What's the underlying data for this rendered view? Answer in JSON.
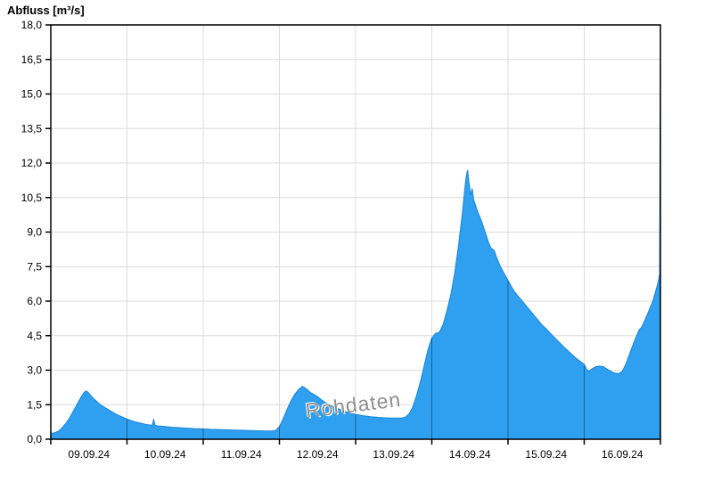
{
  "title": "Abfluss [m³/s]",
  "watermark": "Rohdaten",
  "chart_data": {
    "type": "area",
    "title": "Abfluss [m³/s]",
    "ylabel": "Abfluss [m³/s]",
    "xlabel": "",
    "unit": "m³/s",
    "ylim": [
      0,
      18
    ],
    "xlim_days": [
      0,
      8
    ],
    "grid": true,
    "y_tick_values": [
      0,
      1.5,
      3,
      4.5,
      6,
      7.5,
      9,
      10.5,
      12,
      13.5,
      15,
      16.5,
      18
    ],
    "y_tick_labels": [
      "0,0",
      "1,5",
      "3,0",
      "4,5",
      "6,0",
      "7,5",
      "9,0",
      "10,5",
      "12,0",
      "13,5",
      "15,0",
      "16,5",
      "18,0"
    ],
    "x_tick_labels": [
      "09.09.24",
      "10.09.24",
      "11.09.24",
      "12.09.24",
      "13.09.24",
      "14.09.24",
      "15.09.24",
      "16.09.24"
    ],
    "fill_color": "#2FA0EF",
    "line_color": "#1E85D6",
    "grid_color": "#DCDCDC",
    "day_line_color": "#15609F",
    "axis_color": "#000000",
    "series": [
      {
        "name": "Abfluss Rohdaten",
        "points": [
          [
            0.0,
            0.25
          ],
          [
            0.05,
            0.28
          ],
          [
            0.1,
            0.35
          ],
          [
            0.15,
            0.5
          ],
          [
            0.2,
            0.7
          ],
          [
            0.25,
            0.95
          ],
          [
            0.3,
            1.25
          ],
          [
            0.35,
            1.55
          ],
          [
            0.4,
            1.85
          ],
          [
            0.44,
            2.05
          ],
          [
            0.47,
            2.1
          ],
          [
            0.5,
            2.0
          ],
          [
            0.55,
            1.8
          ],
          [
            0.6,
            1.65
          ],
          [
            0.65,
            1.5
          ],
          [
            0.7,
            1.4
          ],
          [
            0.75,
            1.3
          ],
          [
            0.8,
            1.2
          ],
          [
            0.85,
            1.1
          ],
          [
            0.9,
            1.02
          ],
          [
            0.95,
            0.95
          ],
          [
            1.0,
            0.88
          ],
          [
            1.05,
            0.82
          ],
          [
            1.1,
            0.76
          ],
          [
            1.15,
            0.72
          ],
          [
            1.2,
            0.68
          ],
          [
            1.25,
            0.64
          ],
          [
            1.3,
            0.62
          ],
          [
            1.33,
            0.6
          ],
          [
            1.35,
            0.85
          ],
          [
            1.37,
            0.6
          ],
          [
            1.4,
            0.58
          ],
          [
            1.5,
            0.55
          ],
          [
            1.6,
            0.52
          ],
          [
            1.7,
            0.5
          ],
          [
            1.8,
            0.48
          ],
          [
            1.9,
            0.46
          ],
          [
            2.0,
            0.45
          ],
          [
            2.1,
            0.43
          ],
          [
            2.2,
            0.42
          ],
          [
            2.3,
            0.41
          ],
          [
            2.4,
            0.4
          ],
          [
            2.5,
            0.39
          ],
          [
            2.6,
            0.38
          ],
          [
            2.7,
            0.37
          ],
          [
            2.8,
            0.36
          ],
          [
            2.9,
            0.36
          ],
          [
            2.95,
            0.38
          ],
          [
            3.0,
            0.55
          ],
          [
            3.05,
            0.9
          ],
          [
            3.1,
            1.3
          ],
          [
            3.15,
            1.65
          ],
          [
            3.2,
            1.95
          ],
          [
            3.25,
            2.15
          ],
          [
            3.3,
            2.3
          ],
          [
            3.35,
            2.2
          ],
          [
            3.4,
            2.05
          ],
          [
            3.45,
            1.95
          ],
          [
            3.5,
            1.85
          ],
          [
            3.55,
            1.72
          ],
          [
            3.6,
            1.6
          ],
          [
            3.65,
            1.5
          ],
          [
            3.7,
            1.42
          ],
          [
            3.75,
            1.35
          ],
          [
            3.8,
            1.28
          ],
          [
            3.85,
            1.22
          ],
          [
            3.9,
            1.17
          ],
          [
            3.95,
            1.12
          ],
          [
            4.0,
            1.08
          ],
          [
            4.1,
            1.02
          ],
          [
            4.2,
            0.98
          ],
          [
            4.3,
            0.95
          ],
          [
            4.4,
            0.93
          ],
          [
            4.5,
            0.92
          ],
          [
            4.6,
            0.92
          ],
          [
            4.65,
            0.95
          ],
          [
            4.7,
            1.1
          ],
          [
            4.75,
            1.4
          ],
          [
            4.8,
            1.9
          ],
          [
            4.85,
            2.5
          ],
          [
            4.9,
            3.2
          ],
          [
            4.95,
            3.9
          ],
          [
            5.0,
            4.4
          ],
          [
            5.05,
            4.6
          ],
          [
            5.1,
            4.65
          ],
          [
            5.15,
            5.0
          ],
          [
            5.2,
            5.6
          ],
          [
            5.25,
            6.3
          ],
          [
            5.3,
            7.2
          ],
          [
            5.35,
            8.4
          ],
          [
            5.4,
            9.8
          ],
          [
            5.43,
            10.8
          ],
          [
            5.45,
            11.4
          ],
          [
            5.47,
            11.7
          ],
          [
            5.49,
            11.1
          ],
          [
            5.51,
            10.6
          ],
          [
            5.53,
            10.9
          ],
          [
            5.55,
            10.4
          ],
          [
            5.6,
            9.9
          ],
          [
            5.65,
            9.5
          ],
          [
            5.7,
            9.0
          ],
          [
            5.75,
            8.5
          ],
          [
            5.78,
            8.3
          ],
          [
            5.82,
            8.2
          ],
          [
            5.85,
            7.9
          ],
          [
            5.9,
            7.5
          ],
          [
            5.95,
            7.2
          ],
          [
            6.0,
            6.9
          ],
          [
            6.05,
            6.6
          ],
          [
            6.1,
            6.35
          ],
          [
            6.15,
            6.15
          ],
          [
            6.2,
            5.95
          ],
          [
            6.25,
            5.75
          ],
          [
            6.3,
            5.55
          ],
          [
            6.35,
            5.35
          ],
          [
            6.4,
            5.15
          ],
          [
            6.45,
            4.95
          ],
          [
            6.5,
            4.8
          ],
          [
            6.55,
            4.62
          ],
          [
            6.6,
            4.45
          ],
          [
            6.65,
            4.28
          ],
          [
            6.7,
            4.12
          ],
          [
            6.75,
            3.95
          ],
          [
            6.8,
            3.8
          ],
          [
            6.85,
            3.65
          ],
          [
            6.9,
            3.5
          ],
          [
            6.95,
            3.38
          ],
          [
            7.0,
            3.25
          ],
          [
            7.03,
            3.05
          ],
          [
            7.06,
            2.95
          ],
          [
            7.1,
            3.05
          ],
          [
            7.15,
            3.15
          ],
          [
            7.2,
            3.18
          ],
          [
            7.25,
            3.15
          ],
          [
            7.3,
            3.05
          ],
          [
            7.35,
            2.95
          ],
          [
            7.4,
            2.88
          ],
          [
            7.45,
            2.85
          ],
          [
            7.5,
            2.95
          ],
          [
            7.55,
            3.3
          ],
          [
            7.6,
            3.75
          ],
          [
            7.65,
            4.2
          ],
          [
            7.7,
            4.6
          ],
          [
            7.72,
            4.75
          ],
          [
            7.75,
            4.85
          ],
          [
            7.8,
            5.2
          ],
          [
            7.85,
            5.6
          ],
          [
            7.9,
            6.0
          ],
          [
            7.93,
            6.35
          ],
          [
            7.96,
            6.7
          ],
          [
            7.98,
            7.0
          ],
          [
            7.99,
            7.2
          ],
          [
            8.0,
            18.0
          ]
        ]
      }
    ]
  }
}
